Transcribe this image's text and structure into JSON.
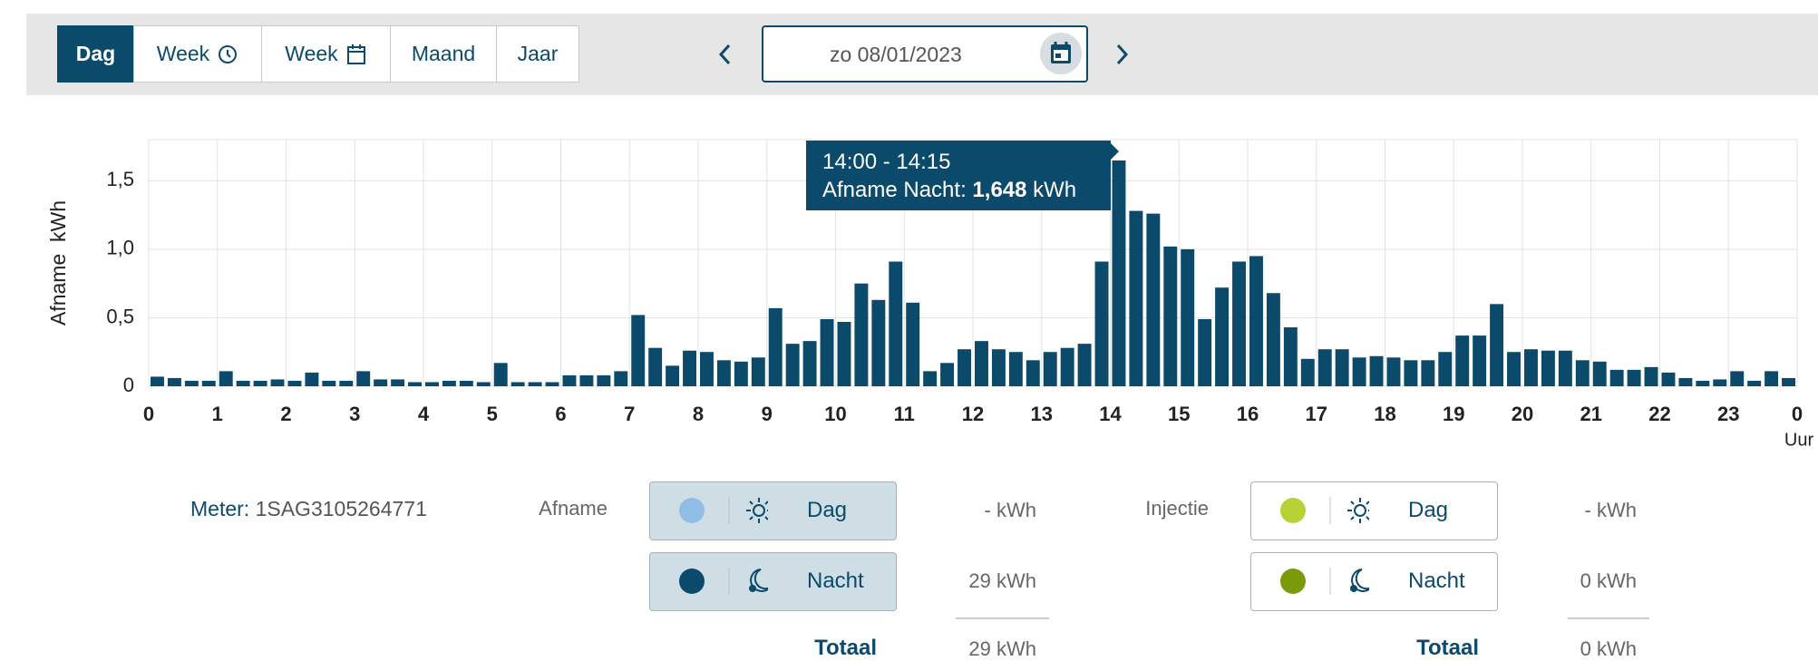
{
  "toolbar": {
    "tabs": [
      "Dag",
      "Week",
      "Week",
      "Maand",
      "Jaar"
    ],
    "date": "zo 08/01/2023"
  },
  "chart_data": {
    "type": "bar",
    "ylabel": "Afname  kWh",
    "xlabel": "Uur",
    "color": "#0b4a6a",
    "x": [
      0,
      0.25,
      0.5,
      0.75,
      1,
      1.25,
      1.5,
      1.75,
      2,
      2.25,
      2.5,
      2.75,
      3,
      3.25,
      3.5,
      3.75,
      4,
      4.25,
      4.5,
      4.75,
      5,
      5.25,
      5.5,
      5.75,
      6,
      6.25,
      6.5,
      6.75,
      7,
      7.25,
      7.5,
      7.75,
      8,
      8.25,
      8.5,
      8.75,
      9,
      9.25,
      9.5,
      9.75,
      10,
      10.25,
      10.5,
      10.75,
      11,
      11.25,
      11.5,
      11.75,
      12,
      12.25,
      12.5,
      12.75,
      13,
      13.25,
      13.5,
      13.75,
      14,
      14.25,
      14.5,
      14.75,
      15,
      15.25,
      15.5,
      15.75,
      16,
      16.25,
      16.5,
      16.75,
      17,
      17.25,
      17.5,
      17.75,
      18,
      18.25,
      18.5,
      18.75,
      19,
      19.25,
      19.5,
      19.75,
      20,
      20.25,
      20.5,
      20.75,
      21,
      21.25,
      21.5,
      21.75,
      22,
      22.25,
      22.5,
      22.75,
      23,
      23.25,
      23.5,
      23.75
    ],
    "values": [
      0.07,
      0.06,
      0.04,
      0.04,
      0.11,
      0.04,
      0.04,
      0.05,
      0.04,
      0.1,
      0.04,
      0.04,
      0.11,
      0.05,
      0.05,
      0.03,
      0.03,
      0.04,
      0.04,
      0.03,
      0.17,
      0.03,
      0.03,
      0.03,
      0.08,
      0.08,
      0.08,
      0.11,
      0.52,
      0.28,
      0.15,
      0.26,
      0.25,
      0.19,
      0.18,
      0.21,
      0.57,
      0.31,
      0.33,
      0.49,
      0.47,
      0.75,
      0.63,
      0.91,
      0.61,
      0.11,
      0.17,
      0.27,
      0.33,
      0.27,
      0.25,
      0.19,
      0.25,
      0.28,
      0.31,
      0.91,
      1.648,
      1.28,
      1.26,
      1.02,
      1.0,
      0.49,
      0.72,
      0.91,
      0.95,
      0.68,
      0.43,
      0.2,
      0.27,
      0.27,
      0.21,
      0.22,
      0.21,
      0.19,
      0.19,
      0.25,
      0.37,
      0.37,
      0.6,
      0.25,
      0.27,
      0.26,
      0.26,
      0.19,
      0.18,
      0.12,
      0.12,
      0.14,
      0.1,
      0.06,
      0.04,
      0.05,
      0.11,
      0.04,
      0.11,
      0.06
    ],
    "xlim": [
      0,
      24
    ],
    "ylim": [
      0,
      1.8
    ],
    "yticks": [
      0,
      {
        "value": 0.5,
        "label": "0,5"
      },
      {
        "value": 1,
        "label": "1,0"
      },
      {
        "value": 1.5,
        "label": "1,5"
      }
    ],
    "xticks": [
      0,
      1,
      2,
      3,
      4,
      5,
      6,
      7,
      8,
      9,
      10,
      11,
      12,
      13,
      14,
      15,
      16,
      17,
      18,
      19,
      20,
      21,
      22,
      23,
      {
        "value": 24,
        "label": "0"
      }
    ],
    "grid": true,
    "tooltip": {
      "time": "14:00 - 14:15",
      "label": "Afname Nacht:",
      "value": "1,648",
      "unit": "kWh"
    }
  },
  "meter": {
    "label": "Meter:",
    "id": "1SAG3105264771"
  },
  "afname": {
    "title": "Afname",
    "rows": [
      {
        "name": "Dag",
        "value": "- kWh",
        "color": "#90bde6"
      },
      {
        "name": "Nacht",
        "value": "29 kWh",
        "color": "#0b4a6a"
      }
    ],
    "total_label": "Totaal",
    "total": "29 kWh"
  },
  "injectie": {
    "title": "Injectie",
    "rows": [
      {
        "name": "Dag",
        "value": "- kWh",
        "color": "#b5d334"
      },
      {
        "name": "Nacht",
        "value": "0 kWh",
        "color": "#7a9a0a"
      }
    ],
    "total_label": "Totaal",
    "total": "0 kWh"
  }
}
